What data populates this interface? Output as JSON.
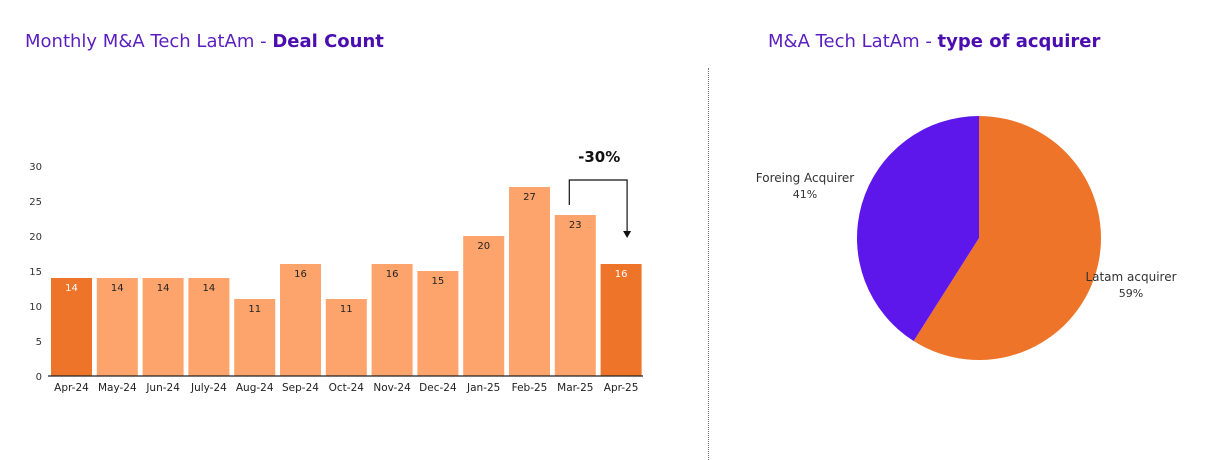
{
  "bar_title": {
    "prefix": "Monthly M&A Tech LatAm - ",
    "bold": "Deal Count"
  },
  "pie_title": {
    "prefix": "M&A Tech LatAm - ",
    "bold": "type of acquirer"
  },
  "colors": {
    "highlight": "#ee742a",
    "bar": "#fca46c",
    "foreign": "#5e17eb",
    "latam": "#ee742a",
    "title": "#5b1fbf"
  },
  "chart_data": [
    {
      "type": "bar",
      "title": "Monthly M&A Tech LatAm - Deal Count",
      "categories": [
        "Apr-24",
        "May-24",
        "Jun-24",
        "July-24",
        "Aug-24",
        "Sep-24",
        "Oct-24",
        "Nov-24",
        "Dec-24",
        "Jan-25",
        "Feb-25",
        "Mar-25",
        "Apr-25"
      ],
      "values": [
        14,
        14,
        14,
        14,
        11,
        16,
        11,
        16,
        15,
        20,
        27,
        23,
        16
      ],
      "highlighted": [
        "Apr-24",
        "Apr-25"
      ],
      "yticks": [
        0,
        5,
        10,
        15,
        20,
        25,
        30
      ],
      "ylim": [
        0,
        30
      ],
      "annotation": {
        "text": "-30%",
        "from": "Mar-25",
        "to": "Apr-25"
      }
    },
    {
      "type": "pie",
      "title": "M&A Tech LatAm - type of acquirer",
      "slices": [
        {
          "label": "Latam acquirer",
          "value": 59,
          "pct_label": "59%"
        },
        {
          "label": "Foreing Acquirer",
          "value": 41,
          "pct_label": "41%"
        }
      ]
    }
  ]
}
